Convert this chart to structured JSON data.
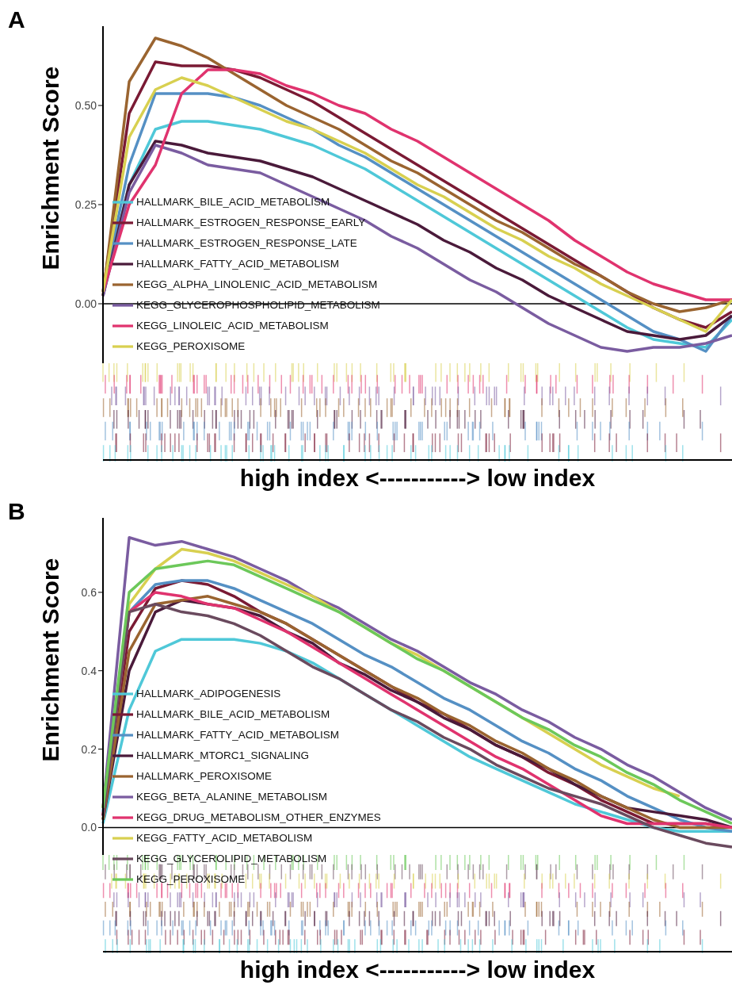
{
  "chart_data": [
    {
      "type": "line",
      "title": "A",
      "xlabel": "high index <-----------> low index",
      "ylabel": "Enrichment Score",
      "categories": [
        null,
        null,
        null,
        null,
        null,
        null,
        null,
        null,
        null,
        null,
        null,
        null,
        null,
        null,
        null,
        null,
        null,
        null,
        null,
        null,
        null,
        null,
        null,
        null,
        null
      ],
      "ylim": [
        -0.15,
        0.7
      ],
      "yticks": [
        {
          "value": 0,
          "label": "0.00"
        },
        {
          "value": 0.25,
          "label": "0.25"
        },
        {
          "value": 0.5,
          "label": "0.50"
        }
      ],
      "tick_labels": "y",
      "legend": "left",
      "marker": "none",
      "line_style": "solid",
      "ref_lines": [
        {
          "axis": "y",
          "value": 0,
          "color": "#000000"
        }
      ],
      "series": [
        {
          "name": "HALLMARK_BILE_ACID_METABOLISM",
          "color": "#4fc8d8",
          "values": [
            0.03,
            0.3,
            0.44,
            0.46,
            0.46,
            0.45,
            0.44,
            0.42,
            0.4,
            0.37,
            0.34,
            0.3,
            0.26,
            0.22,
            0.18,
            0.14,
            0.1,
            0.06,
            0.02,
            -0.02,
            -0.06,
            -0.09,
            -0.1,
            -0.11,
            -0.04
          ]
        },
        {
          "name": "HALLMARK_ESTROGEN_RESPONSE_EARLY",
          "color": "#7a1a34",
          "values": [
            0.03,
            0.48,
            0.61,
            0.6,
            0.6,
            0.59,
            0.57,
            0.54,
            0.51,
            0.47,
            0.43,
            0.39,
            0.35,
            0.31,
            0.27,
            0.23,
            0.19,
            0.15,
            0.11,
            0.07,
            0.03,
            -0.01,
            -0.04,
            -0.06,
            -0.02
          ]
        },
        {
          "name": "HALLMARK_ESTROGEN_RESPONSE_LATE",
          "color": "#5590c4",
          "values": [
            0.03,
            0.35,
            0.53,
            0.53,
            0.53,
            0.52,
            0.5,
            0.47,
            0.44,
            0.4,
            0.37,
            0.33,
            0.29,
            0.25,
            0.21,
            0.17,
            0.13,
            0.09,
            0.05,
            0.01,
            -0.03,
            -0.07,
            -0.09,
            -0.12,
            -0.03
          ]
        },
        {
          "name": "HALLMARK_FATTY_ACID_METABOLISM",
          "color": "#4a1a3a",
          "values": [
            0.02,
            0.3,
            0.41,
            0.4,
            0.38,
            0.37,
            0.36,
            0.34,
            0.32,
            0.29,
            0.26,
            0.23,
            0.2,
            0.16,
            0.13,
            0.09,
            0.06,
            0.02,
            -0.01,
            -0.04,
            -0.07,
            -0.08,
            -0.09,
            -0.08,
            -0.03
          ]
        },
        {
          "name": "KEGG_ALPHA_LINOLENIC_ACID_METABOLISM",
          "color": "#9a6430",
          "values": [
            0.02,
            0.56,
            0.67,
            0.65,
            0.62,
            0.58,
            0.54,
            0.5,
            0.47,
            0.44,
            0.4,
            0.36,
            0.33,
            0.29,
            0.25,
            0.21,
            0.18,
            0.14,
            0.1,
            0.07,
            0.03,
            0.0,
            -0.02,
            -0.01,
            0.01
          ]
        },
        {
          "name": "KEGG_GLYCEROPHOSPHOLIPID_METABOLISM",
          "color": "#7a5ca0",
          "values": [
            0.02,
            0.28,
            0.4,
            0.38,
            0.35,
            0.34,
            0.33,
            0.3,
            0.27,
            0.24,
            0.21,
            0.17,
            0.14,
            0.1,
            0.06,
            0.03,
            -0.01,
            -0.05,
            -0.08,
            -0.11,
            -0.12,
            -0.11,
            -0.11,
            -0.1,
            -0.08
          ]
        },
        {
          "name": "KEGG_LINOLEIC_ACID_METABOLISM",
          "color": "#e0336e",
          "values": [
            0.03,
            0.25,
            0.35,
            0.53,
            0.59,
            0.59,
            0.58,
            0.55,
            0.53,
            0.5,
            0.48,
            0.44,
            0.41,
            0.37,
            0.33,
            0.29,
            0.25,
            0.21,
            0.16,
            0.12,
            0.08,
            0.05,
            0.03,
            0.01,
            0.01
          ]
        },
        {
          "name": "KEGG_PEROXISOME",
          "color": "#d8d050",
          "values": [
            0.03,
            0.42,
            0.54,
            0.57,
            0.55,
            0.52,
            0.49,
            0.46,
            0.44,
            0.41,
            0.38,
            0.34,
            0.3,
            0.27,
            0.23,
            0.19,
            0.16,
            0.12,
            0.09,
            0.05,
            0.02,
            -0.01,
            -0.04,
            -0.07,
            0.01
          ]
        }
      ]
    },
    {
      "type": "line",
      "title": "B",
      "xlabel": "high index <-----------> low index",
      "ylabel": "Enrichment Score",
      "categories": [
        null,
        null,
        null,
        null,
        null,
        null,
        null,
        null,
        null,
        null,
        null,
        null,
        null,
        null,
        null,
        null,
        null,
        null,
        null,
        null,
        null,
        null,
        null,
        null,
        null
      ],
      "ylim": [
        -0.07,
        0.79
      ],
      "yticks": [
        {
          "value": 0,
          "label": "0.0"
        },
        {
          "value": 0.2,
          "label": "0.2"
        },
        {
          "value": 0.4,
          "label": "0.4"
        },
        {
          "value": 0.6,
          "label": "0.6"
        }
      ],
      "tick_labels": "y",
      "legend": "left",
      "marker": "none",
      "line_style": "solid",
      "ref_lines": [
        {
          "axis": "y",
          "value": 0,
          "color": "#000000"
        }
      ],
      "series": [
        {
          "name": "HALLMARK_ADIPOGENESIS",
          "color": "#4fc8d8",
          "values": [
            0.01,
            0.3,
            0.45,
            0.48,
            0.48,
            0.48,
            0.47,
            0.45,
            0.42,
            0.38,
            0.34,
            0.3,
            0.26,
            0.22,
            0.18,
            0.15,
            0.12,
            0.09,
            0.06,
            0.04,
            0.02,
            0.0,
            -0.01,
            -0.01,
            -0.01
          ]
        },
        {
          "name": "HALLMARK_BILE_ACID_METABOLISM",
          "color": "#7a1a34",
          "values": [
            0.03,
            0.5,
            0.61,
            0.63,
            0.62,
            0.59,
            0.55,
            0.52,
            0.48,
            0.44,
            0.4,
            0.36,
            0.32,
            0.29,
            0.25,
            0.21,
            0.18,
            0.14,
            0.11,
            0.07,
            0.04,
            0.01,
            0.01,
            0.01,
            0.0
          ]
        },
        {
          "name": "HALLMARK_FATTY_ACID_METABOLISM",
          "color": "#5590c4",
          "values": [
            0.04,
            0.55,
            0.62,
            0.63,
            0.63,
            0.61,
            0.58,
            0.55,
            0.52,
            0.48,
            0.44,
            0.41,
            0.37,
            0.33,
            0.3,
            0.26,
            0.22,
            0.19,
            0.15,
            0.12,
            0.08,
            0.05,
            0.02,
            0.0,
            -0.01
          ]
        },
        {
          "name": "HALLMARK_MTORC1_SIGNALING",
          "color": "#4a1a3a",
          "values": [
            0.02,
            0.4,
            0.55,
            0.58,
            0.57,
            0.56,
            0.54,
            0.5,
            0.47,
            0.42,
            0.39,
            0.35,
            0.32,
            0.28,
            0.25,
            0.21,
            0.18,
            0.15,
            0.11,
            0.08,
            0.05,
            0.04,
            0.03,
            0.02,
            0.0
          ]
        },
        {
          "name": "HALLMARK_PEROXISOME",
          "color": "#9a6430",
          "values": [
            0.02,
            0.45,
            0.57,
            0.58,
            0.59,
            0.57,
            0.55,
            0.52,
            0.48,
            0.44,
            0.4,
            0.36,
            0.33,
            0.29,
            0.26,
            0.22,
            0.19,
            0.15,
            0.12,
            0.08,
            0.05,
            0.02,
            0.0,
            0.0,
            0.0
          ]
        },
        {
          "name": "KEGG_BETA_ALANINE_METABOLISM",
          "color": "#7a5ca0",
          "values": [
            0.05,
            0.74,
            0.72,
            0.73,
            0.71,
            0.69,
            0.66,
            0.63,
            0.59,
            0.56,
            0.52,
            0.48,
            0.45,
            0.41,
            0.37,
            0.34,
            0.3,
            0.27,
            0.23,
            0.2,
            0.16,
            0.13,
            0.09,
            0.05,
            0.02
          ]
        },
        {
          "name": "KEGG_DRUG_METABOLISM_OTHER_ENZYMES",
          "color": "#e0336e",
          "values": [
            0.03,
            0.55,
            0.6,
            0.59,
            0.57,
            0.56,
            0.53,
            0.5,
            0.46,
            0.42,
            0.38,
            0.34,
            0.3,
            0.26,
            0.22,
            0.18,
            0.15,
            0.11,
            0.07,
            0.03,
            0.01,
            0.01,
            0.01,
            0.01,
            0.0
          ]
        },
        {
          "name": "KEGG_FATTY_ACID_METABOLISM",
          "color": "#d8d050",
          "values": [
            0.05,
            0.57,
            0.66,
            0.71,
            0.7,
            0.68,
            0.65,
            0.62,
            0.59,
            0.55,
            0.51,
            0.47,
            0.44,
            0.4,
            0.36,
            0.32,
            0.28,
            0.24,
            0.2,
            0.16,
            0.13,
            0.1,
            0.08,
            null,
            null
          ]
        },
        {
          "name": "KEGG_GLYCEROLIPID_METABOLISM",
          "color": "#6a4a5e",
          "values": [
            0.03,
            0.55,
            0.57,
            0.55,
            0.54,
            0.52,
            0.49,
            0.45,
            0.41,
            0.38,
            0.34,
            0.3,
            0.27,
            0.23,
            0.2,
            0.16,
            0.13,
            0.1,
            0.08,
            0.06,
            0.03,
            0.0,
            -0.02,
            -0.04,
            -0.05
          ]
        },
        {
          "name": "KEGG_PEROXISOME",
          "color": "#6cc85a",
          "values": [
            0.05,
            0.6,
            0.66,
            0.67,
            0.68,
            0.67,
            0.64,
            0.61,
            0.58,
            0.55,
            0.51,
            0.47,
            0.43,
            0.4,
            0.36,
            0.32,
            0.28,
            0.25,
            0.21,
            0.18,
            0.14,
            0.11,
            0.07,
            0.04,
            0.01
          ]
        }
      ]
    }
  ]
}
